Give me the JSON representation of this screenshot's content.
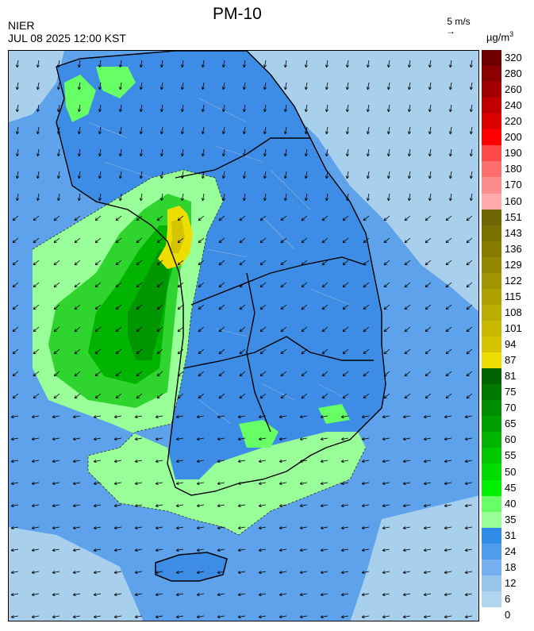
{
  "header": {
    "title": "PM-10",
    "agency": "NIER",
    "timestamp": "JUL 08 2025 12:00 KST",
    "wind_reference": "5 m/s",
    "wind_reference_arrow": "→",
    "unit": "µg/m",
    "unit_exp": "3"
  },
  "legend": {
    "labels": [
      "320",
      "280",
      "260",
      "240",
      "220",
      "200",
      "190",
      "180",
      "170",
      "160",
      "151",
      "143",
      "136",
      "129",
      "122",
      "115",
      "108",
      "101",
      "94",
      "87",
      "81",
      "75",
      "70",
      "65",
      "60",
      "55",
      "50",
      "45",
      "40",
      "35",
      "31",
      "24",
      "18",
      "12",
      "6",
      "0"
    ],
    "colors": [
      "#6e0000",
      "#8b0000",
      "#a30000",
      "#c00000",
      "#dd0000",
      "#ff0000",
      "#ff4a4a",
      "#ff6e6e",
      "#ff8c8c",
      "#ffaaaa",
      "#6e6400",
      "#7a7000",
      "#877c00",
      "#948800",
      "#a19400",
      "#aea000",
      "#bbac00",
      "#c8b800",
      "#d5c400",
      "#eedd00",
      "#006400",
      "#007800",
      "#008c00",
      "#00a000",
      "#00b400",
      "#00c800",
      "#00dc00",
      "#00f000",
      "#66ff66",
      "#99ff99",
      "#2e8be8",
      "#4f9cee",
      "#74b0f0",
      "#96c6ea",
      "#b0d6ef"
    ]
  },
  "map": {
    "fill_colors": {
      "sea_light": "#a8cfec",
      "sea": "#5da2ea",
      "land": "#3d8ce6",
      "g35": "#99ff99",
      "g40": "#66ff66",
      "g45": "#2fd42f",
      "g55": "#00b400",
      "g65": "#009600",
      "y87": "#eedd00",
      "y94": "#d5c400",
      "coast": "#000000",
      "district": "#9bb7d6"
    },
    "wind_arrow_direction": "toward west-southwest"
  }
}
